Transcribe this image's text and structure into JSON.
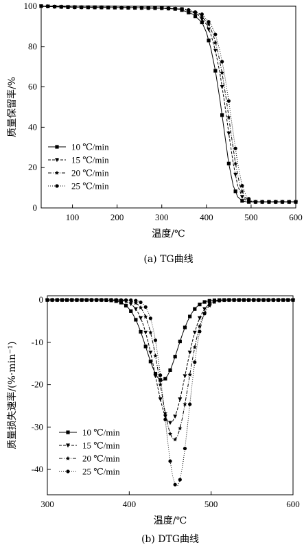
{
  "chart_data": [
    {
      "type": "line",
      "caption": "(a) TG曲线",
      "xlabel": "温度/℃",
      "ylabel": "质量保留率/%",
      "xlim": [
        30,
        600
      ],
      "ylim": [
        0,
        100
      ],
      "xticks": [
        100,
        200,
        300,
        400,
        500,
        600
      ],
      "yticks": [
        0,
        20,
        40,
        60,
        80,
        100
      ],
      "legend_position": "left",
      "series": [
        {
          "name": "10 ℃/min",
          "style": "solid",
          "marker": "square",
          "x": [
            30,
            100,
            200,
            300,
            340,
            370,
            390,
            400,
            410,
            420,
            430,
            440,
            450,
            460,
            470,
            480,
            490,
            500,
            600
          ],
          "y": [
            100,
            99.5,
            99.3,
            99,
            98.5,
            96,
            92,
            87,
            79,
            68,
            54,
            38,
            22,
            11,
            5.5,
            3.5,
            3,
            3,
            3
          ]
        },
        {
          "name": "15 ℃/min",
          "style": "dashed",
          "marker": "triangle-down",
          "x": [
            30,
            100,
            200,
            300,
            350,
            380,
            400,
            410,
            420,
            430,
            440,
            450,
            460,
            470,
            480,
            490,
            500,
            600
          ],
          "y": [
            100,
            99.5,
            99.3,
            99,
            98.5,
            96,
            91,
            86,
            78,
            67,
            53,
            37,
            22,
            11,
            5.5,
            3.5,
            3,
            3
          ]
        },
        {
          "name": "20 ℃/min",
          "style": "dash-dot",
          "marker": "star",
          "x": [
            30,
            100,
            200,
            300,
            350,
            385,
            405,
            415,
            425,
            435,
            445,
            455,
            465,
            475,
            485,
            495,
            505,
            600
          ],
          "y": [
            100,
            99.5,
            99.3,
            99,
            98.5,
            96,
            91,
            86,
            78,
            67,
            53,
            37,
            22,
            11,
            5.5,
            3.5,
            3,
            3
          ]
        },
        {
          "name": "25 ℃/min",
          "style": "dotted",
          "marker": "circle",
          "x": [
            30,
            100,
            200,
            300,
            355,
            390,
            410,
            420,
            430,
            440,
            450,
            460,
            470,
            480,
            490,
            500,
            510,
            600
          ],
          "y": [
            100,
            99.5,
            99.3,
            99,
            98.5,
            96,
            91,
            86,
            78,
            67,
            53,
            37,
            22,
            11,
            5.5,
            3.5,
            3,
            3
          ]
        }
      ]
    },
    {
      "type": "line",
      "caption": "(b) DTG曲线",
      "xlabel": "温度/℃",
      "ylabel": "质量损失速率/(%·min⁻¹)",
      "xlim": [
        300,
        600
      ],
      "ylim": [
        -46,
        1
      ],
      "xticks": [
        300,
        400,
        500,
        600
      ],
      "yticks": [
        -40,
        -30,
        -20,
        -10,
        0
      ],
      "legend_position": "bottom-left",
      "series": [
        {
          "name": "10 ℃/min",
          "style": "solid",
          "marker": "square",
          "peak": {
            "x": 440,
            "y": -19
          },
          "width": 27,
          "shift": 0
        },
        {
          "name": "15 ℃/min",
          "style": "dashed",
          "marker": "triangle-down",
          "peak": {
            "x": 450,
            "y": -29
          },
          "width": 26,
          "shift": 0
        },
        {
          "name": "20 ℃/min",
          "style": "dash-dot",
          "marker": "star",
          "peak": {
            "x": 455,
            "y": -33
          },
          "width": 24,
          "shift": 0
        },
        {
          "name": "25 ℃/min",
          "style": "dotted",
          "marker": "circle",
          "peak": {
            "x": 458,
            "y": -44
          },
          "width": 21,
          "shift": 0
        }
      ]
    }
  ]
}
